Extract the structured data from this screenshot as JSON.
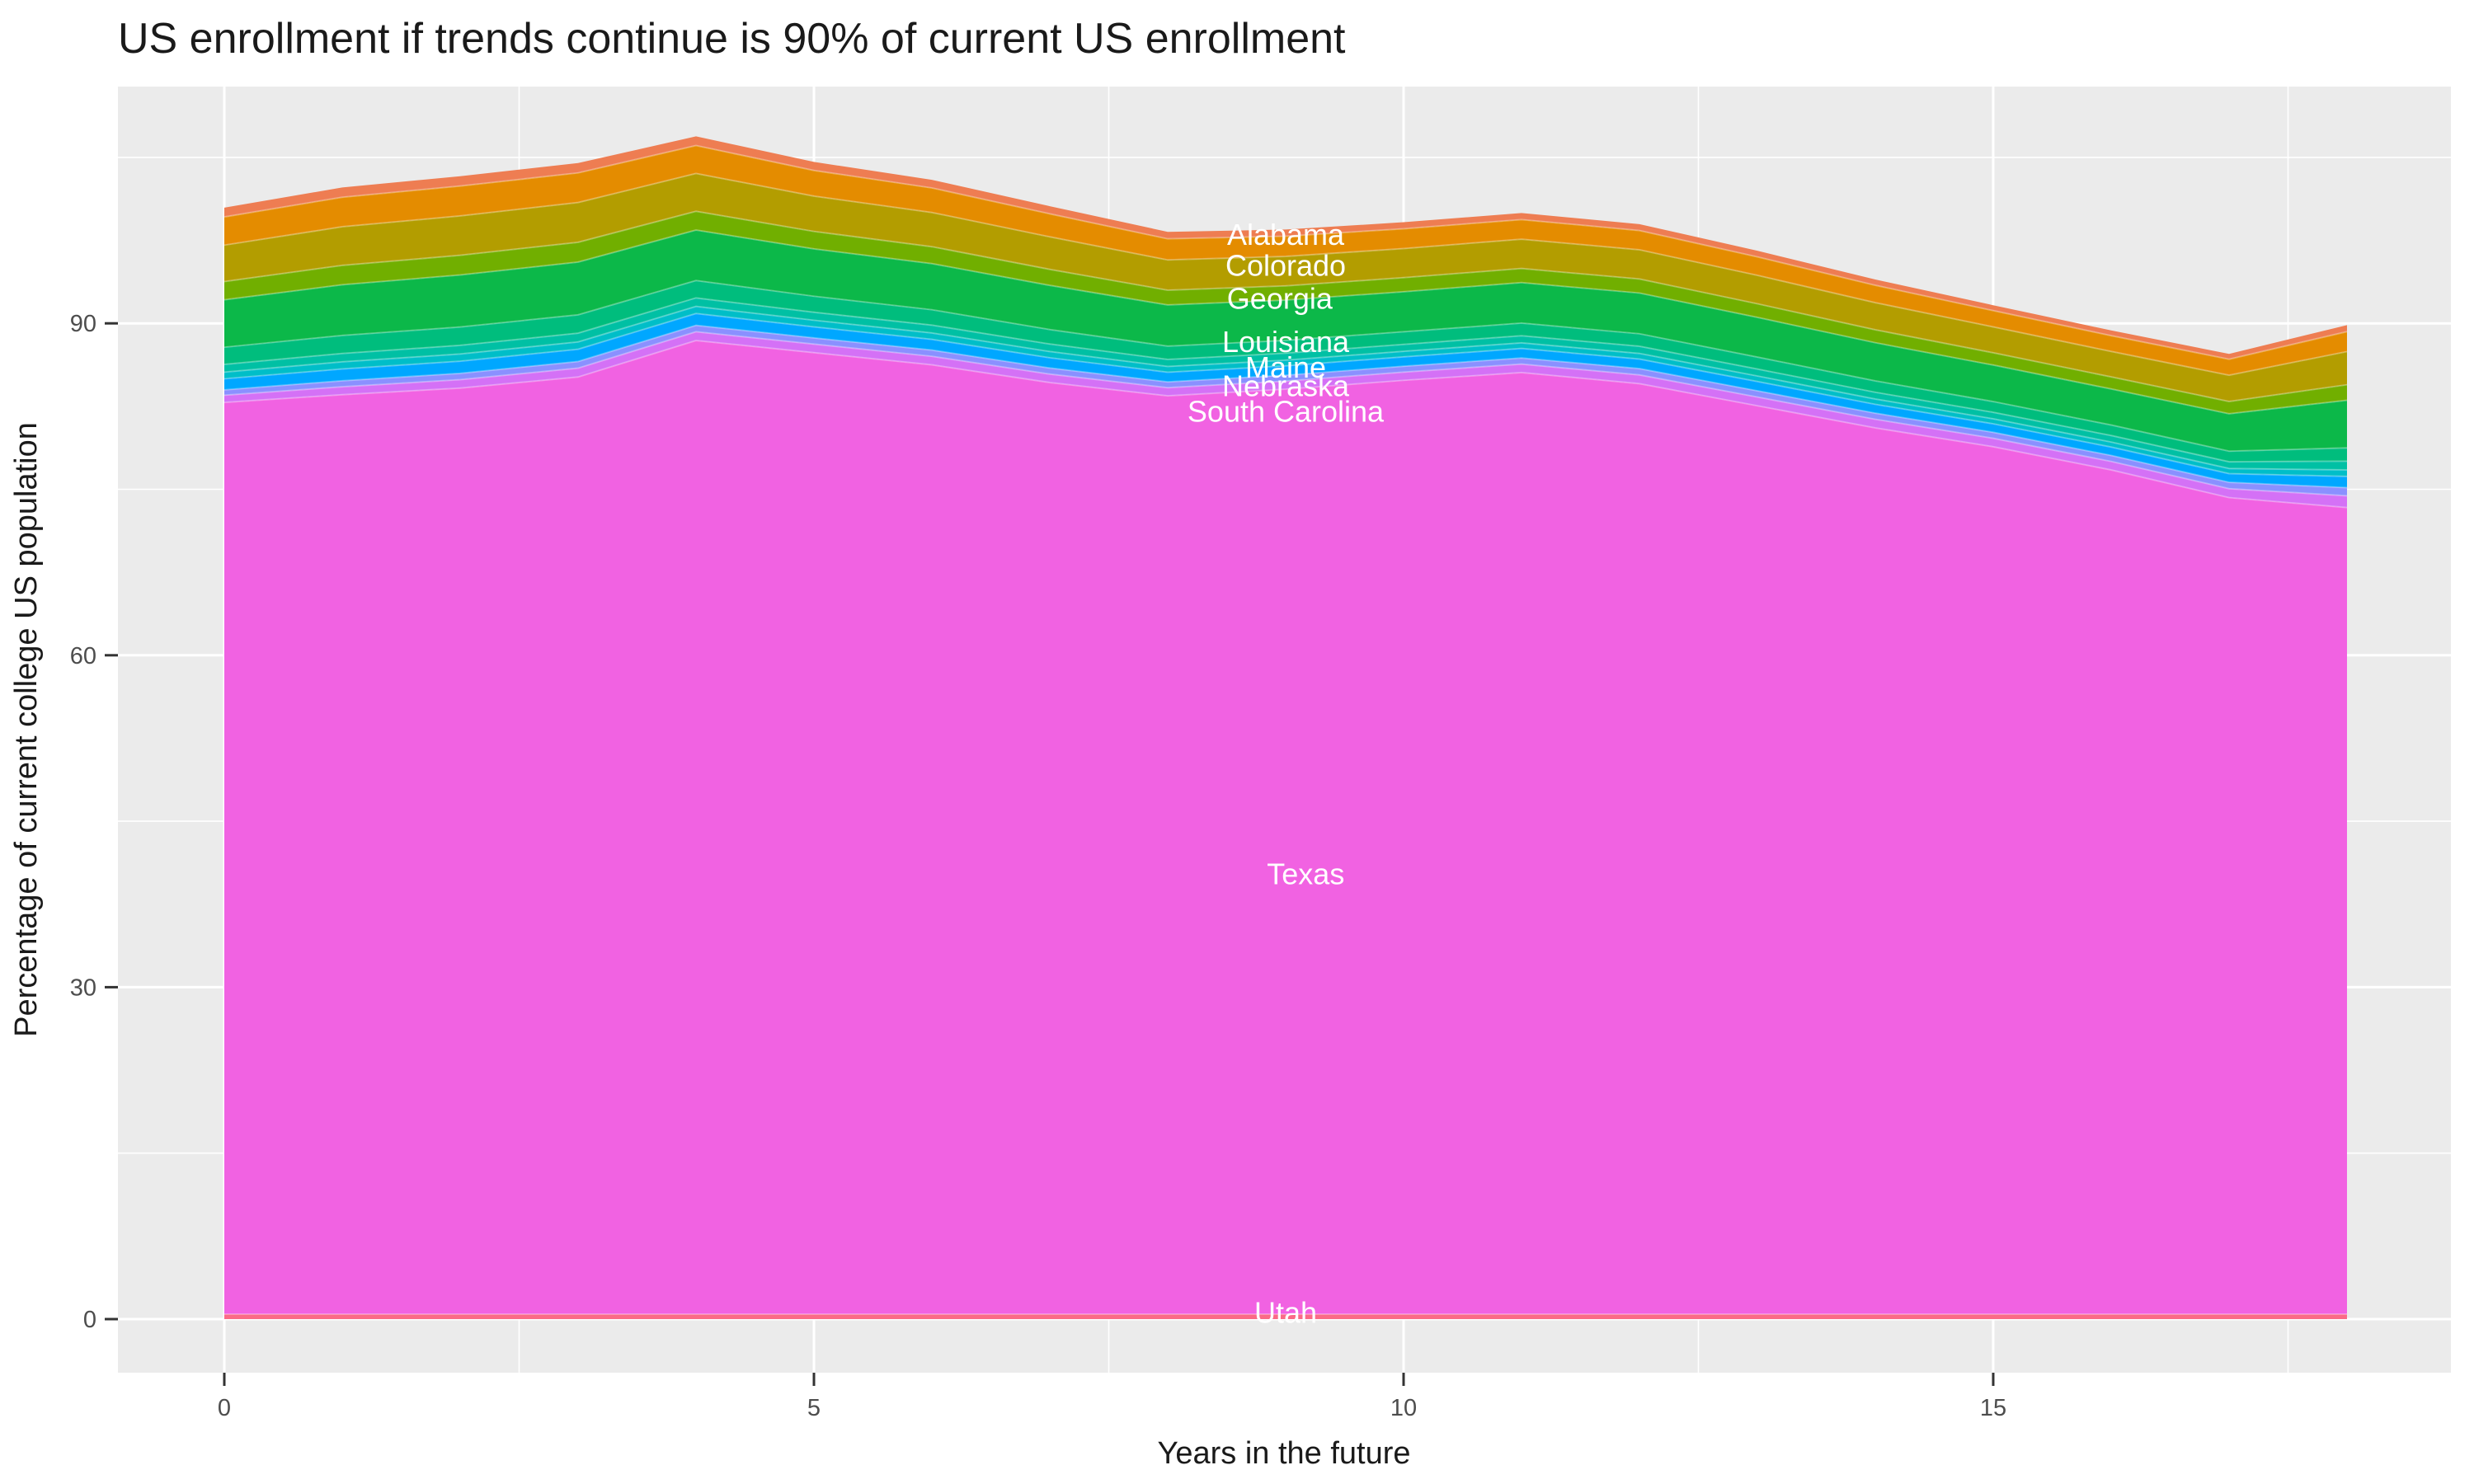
{
  "chart_data": {
    "type": "area",
    "stacked": true,
    "title": "US enrollment if trends continue is 90% of current US enrollment",
    "xlabel": "Years in the future",
    "ylabel": "Percentage of current college US population",
    "x": [
      0,
      1,
      2,
      3,
      4,
      5,
      6,
      7,
      8,
      9,
      10,
      11,
      12,
      13,
      14,
      15,
      16,
      17,
      18
    ],
    "xlim": [
      0,
      18
    ],
    "ylim": [
      0,
      110
    ],
    "grid": "major-and-minor",
    "legend_position": "none",
    "axes": {
      "x_major_ticks": [
        0,
        5,
        10,
        15
      ],
      "x_minor_ticks": [
        2.5,
        7.5,
        12.5,
        17.5
      ],
      "y_major_ticks": [
        0,
        30,
        60,
        90
      ],
      "y_minor_ticks": [
        15,
        45,
        75,
        105
      ]
    },
    "series": [
      {
        "label": "",
        "color": "#EE7D52",
        "values": [
          0.84,
          0.88,
          0.89,
          0.89,
          0.83,
          0.77,
          0.73,
          0.69,
          0.63,
          0.6,
          0.59,
          0.59,
          0.58,
          0.55,
          0.52,
          0.49,
          0.47,
          0.48,
          0.59
        ]
      },
      {
        "label": "Alabama",
        "color": "#E48C00",
        "values": [
          2.55,
          2.67,
          2.7,
          2.68,
          2.52,
          2.32,
          2.22,
          2.08,
          1.91,
          1.83,
          1.79,
          1.77,
          1.74,
          1.67,
          1.57,
          1.47,
          1.43,
          1.45,
          1.8
        ]
      },
      {
        "label": "Colorado",
        "color": "#B39D00",
        "values": [
          3.29,
          3.49,
          3.56,
          3.59,
          3.42,
          3.19,
          3.09,
          2.94,
          2.73,
          2.66,
          2.63,
          2.65,
          2.64,
          2.57,
          2.45,
          2.34,
          2.3,
          2.37,
          3.0
        ]
      },
      {
        "label": "Georgia",
        "color": "#71AF00",
        "values": [
          1.65,
          1.75,
          1.78,
          1.79,
          1.7,
          1.58,
          1.53,
          1.45,
          1.34,
          1.29,
          1.27,
          1.28,
          1.27,
          1.23,
          1.17,
          1.11,
          1.09,
          1.11,
          1.4
        ]
      },
      {
        "label": "Louisiana",
        "color": "#0CB849",
        "values": [
          4.29,
          4.58,
          4.7,
          4.77,
          4.56,
          4.28,
          4.17,
          3.99,
          3.72,
          3.64,
          3.62,
          3.66,
          3.68,
          3.59,
          3.45,
          3.3,
          3.26,
          3.38,
          4.31
        ]
      },
      {
        "label": "Maine",
        "color": "#00BD7D",
        "values": [
          1.55,
          1.63,
          1.66,
          1.66,
          1.57,
          1.45,
          1.39,
          1.31,
          1.2,
          1.16,
          1.14,
          1.14,
          1.13,
          1.08,
          1.03,
          0.97,
          0.95,
          0.96,
          1.2
        ]
      },
      {
        "label": "",
        "color": "#00C0A4",
        "values": [
          0.7,
          0.76,
          0.78,
          0.79,
          0.77,
          0.72,
          0.71,
          0.68,
          0.64,
          0.63,
          0.63,
          0.64,
          0.65,
          0.63,
          0.61,
          0.59,
          0.59,
          0.61,
          0.79
        ]
      },
      {
        "label": "",
        "color": "#00BEC8",
        "values": [
          0.6,
          0.64,
          0.65,
          0.66,
          0.64,
          0.6,
          0.58,
          0.56,
          0.52,
          0.51,
          0.5,
          0.51,
          0.51,
          0.5,
          0.48,
          0.45,
          0.45,
          0.46,
          0.59
        ]
      },
      {
        "label": "Nebraska",
        "color": "#00A7FF",
        "values": [
          1.0,
          1.07,
          1.1,
          1.11,
          1.07,
          1.0,
          0.97,
          0.93,
          0.87,
          0.85,
          0.85,
          0.86,
          0.86,
          0.84,
          0.8,
          0.77,
          0.76,
          0.79,
          1.01
        ]
      },
      {
        "label": "",
        "color": "#8A90FF",
        "values": [
          0.49,
          0.54,
          0.57,
          0.6,
          0.58,
          0.56,
          0.56,
          0.55,
          0.53,
          0.53,
          0.53,
          0.55,
          0.57,
          0.56,
          0.55,
          0.54,
          0.54,
          0.57,
          0.74
        ]
      },
      {
        "label": "South Carolina",
        "color": "#D471F6",
        "values": [
          0.65,
          0.72,
          0.76,
          0.8,
          0.79,
          0.77,
          0.77,
          0.76,
          0.73,
          0.73,
          0.74,
          0.77,
          0.79,
          0.79,
          0.78,
          0.76,
          0.77,
          0.81,
          1.06
        ]
      },
      {
        "label": "Texas",
        "color": "#F162E2",
        "values": [
          82.4,
          83.1,
          83.7,
          84.7,
          88.0,
          86.9,
          85.8,
          84.2,
          83.0,
          83.6,
          84.4,
          85.1,
          84.1,
          82.1,
          80.1,
          78.4,
          76.3,
          73.8,
          72.9
        ]
      },
      {
        "label": "Utah",
        "color": "#FB6A87",
        "values": [
          0.45,
          0.45,
          0.45,
          0.45,
          0.45,
          0.45,
          0.45,
          0.45,
          0.45,
          0.45,
          0.45,
          0.45,
          0.45,
          0.45,
          0.45,
          0.45,
          0.45,
          0.45,
          0.45
        ]
      }
    ],
    "annotations": [
      {
        "label": "Alabama",
        "x": 9.0,
        "y": 98.0
      },
      {
        "label": "Colorado",
        "x": 9.0,
        "y": 95.2
      },
      {
        "label": "Georgia",
        "x": 8.95,
        "y": 92.2
      },
      {
        "label": "Louisiana",
        "x": 9.0,
        "y": 88.3
      },
      {
        "label": "Maine",
        "x": 9.0,
        "y": 86.0
      },
      {
        "label": "Nebraska",
        "x": 9.0,
        "y": 84.3
      },
      {
        "label": "South Carolina",
        "x": 9.0,
        "y": 82.0
      },
      {
        "label": "Texas",
        "x": 9.17,
        "y": 40.2
      },
      {
        "label": "Utah",
        "x": 9.0,
        "y": 0.55
      }
    ],
    "theme": {
      "panel_background": "#EBEBEB",
      "gridline_color": "#FFFFFF",
      "tick_mark_color": "#333333",
      "tick_label_color": "#4D4D4D",
      "title_color": "#1A1A1A",
      "band_separator": "rgba(255,255,255,0.30)",
      "band_label_color": "#FFFFFF"
    }
  }
}
